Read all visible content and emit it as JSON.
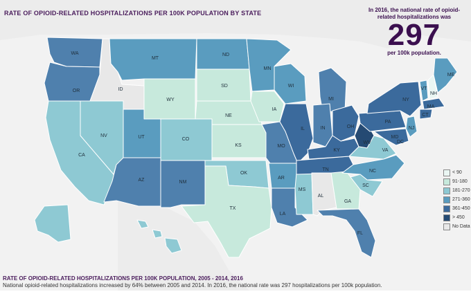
{
  "map": {
    "title": "RATE OF OPIOID-RELATED HOSPITALIZATIONS PER 100K POPULATION BY STATE"
  },
  "callout": {
    "pre": "In 2016, the national rate of opioid-related hospitalizations was",
    "value": "297",
    "post": "per 100k population."
  },
  "legend": [
    {
      "label": "< 90",
      "color": "#eaf6f3"
    },
    {
      "label": "91-180",
      "color": "#c7e9dc"
    },
    {
      "label": "181-270",
      "color": "#8ec9d3"
    },
    {
      "label": "271-360",
      "color": "#5a9cbf"
    },
    {
      "label": "361-450",
      "color": "#3b6a9c"
    },
    {
      "label": "> 450",
      "color": "#254a73"
    },
    {
      "label": "No Data",
      "color": "#e8e8e8"
    }
  ],
  "states": {
    "WA": "WA",
    "OR": "OR",
    "ID": "ID",
    "MT": "MT",
    "WY": "WY",
    "CA": "CA",
    "NV": "NV",
    "UT": "UT",
    "AZ": "AZ",
    "CO": "CO",
    "NM": "NM",
    "ND": "ND",
    "SD": "SD",
    "NE": "NE",
    "KS": "KS",
    "OK": "OK",
    "TX": "TX",
    "MN": "MN",
    "IA": "IA",
    "MO": "MO",
    "AR": "AR",
    "LA": "LA",
    "WI": "WI",
    "IL": "IL",
    "MS": "MS",
    "MI": "MI",
    "IN": "IN",
    "KY": "KY",
    "TN": "TN",
    "AL": "AL",
    "OH": "OH",
    "GA": "GA",
    "FL": "FL",
    "SC": "SC",
    "NC": "NC",
    "VA": "VA",
    "WV": "WV",
    "PA": "PA",
    "NY": "NY",
    "VT": "VT",
    "NH": "NH",
    "ME": "ME",
    "MA": "MA",
    "CT": "CT",
    "NJ": "NJ",
    "MD": "MD",
    "DC": "DC"
  },
  "bottom": {
    "title": "RATE OF OPIOID-RELATED HOSPITALIZATIONS PER 100K POPULATION, 2005 - 2014, 2016",
    "desc": "National opioid-related hospitalizations increased by 64% between 2005 and 2014. In 2016, the national rate was 297 hospitalizations per 100k population."
  }
}
